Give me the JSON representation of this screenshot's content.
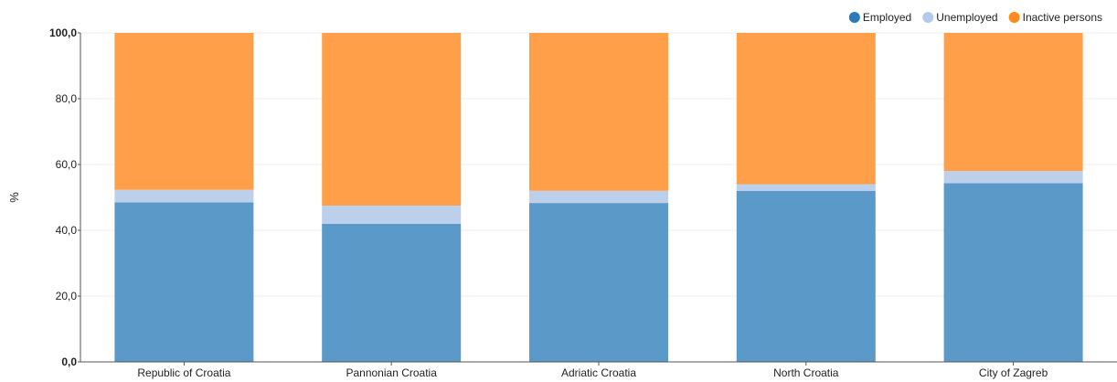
{
  "chart_data": {
    "type": "bar",
    "stacked": true,
    "categories": [
      "Republic of Croatia",
      "Pannonian Croatia",
      "Adriatic Croatia",
      "North Croatia",
      "City of Zagreb"
    ],
    "series": [
      {
        "name": "Employed",
        "color": "#5b9ac8",
        "legend_color": "#2b7bba",
        "values": [
          48.5,
          42.0,
          48.3,
          52.0,
          54.3
        ]
      },
      {
        "name": "Unemployed",
        "color": "#bcd0ec",
        "legend_color": "#b3cbea",
        "values": [
          3.8,
          5.5,
          3.7,
          2.0,
          3.7
        ]
      },
      {
        "name": "Inactive persons",
        "color": "#ff9f4a",
        "legend_color": "#fb8c1e",
        "values": [
          47.7,
          52.5,
          48.0,
          46.0,
          42.0
        ]
      }
    ],
    "ylabel": "%",
    "xlabel": "",
    "ylim": [
      0,
      100
    ],
    "yticks": [
      "0,0",
      "20,0",
      "40,0",
      "60,0",
      "80,0",
      "100,0"
    ],
    "ytick_values": [
      0,
      20,
      40,
      60,
      80,
      100
    ],
    "grid": true,
    "legend_position": "top-right"
  }
}
